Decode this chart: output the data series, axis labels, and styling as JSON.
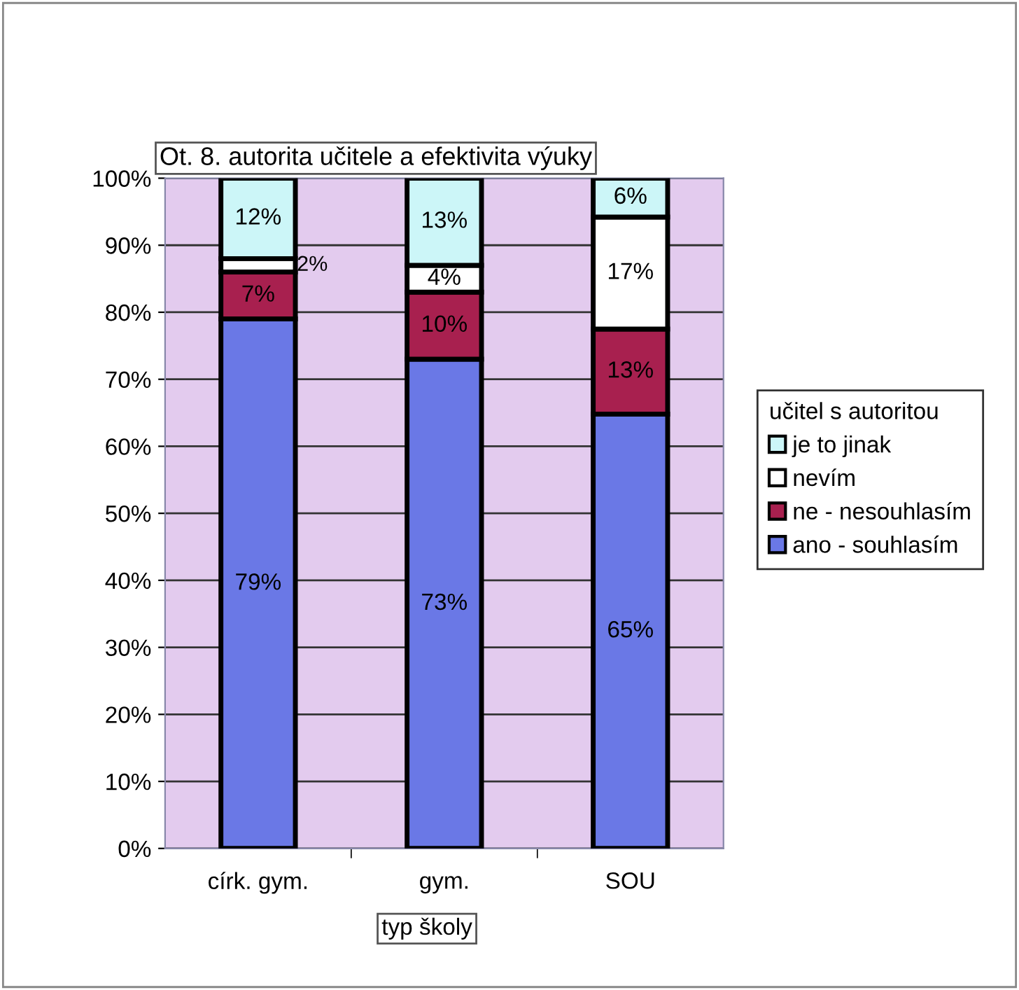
{
  "chart_data": {
    "type": "bar",
    "stacked": true,
    "title": "Ot. 8. autorita učitele a efektivita výuky",
    "xlabel": "typ školy",
    "legend_title": "učitel s autoritou",
    "legend": "right",
    "categories": [
      "círk. gym.",
      "gym.",
      "SOU"
    ],
    "series": [
      {
        "name": "ano - souhlasím",
        "color": "#6a78e6",
        "values": [
          79,
          73,
          64.8
        ],
        "value_labels": [
          "79%",
          "73%",
          "65%"
        ]
      },
      {
        "name": "ne - nesouhlasím",
        "color": "#a8204f",
        "values": [
          7,
          10,
          12.7
        ],
        "value_labels": [
          "7%",
          "10%",
          "13%"
        ]
      },
      {
        "name": "nevím",
        "color": "#ffffff",
        "values": [
          2,
          4,
          16.7
        ],
        "value_labels": [
          "2%",
          "4%",
          "17%"
        ]
      },
      {
        "name": "je to jinak",
        "color": "#ccf6f8",
        "values": [
          12,
          13,
          5.8
        ],
        "value_labels": [
          "12%",
          "13%",
          "6%"
        ]
      }
    ],
    "ylim": [
      0,
      100
    ],
    "yticks": [
      {
        "value": 0,
        "label": "0%"
      },
      {
        "value": 10,
        "label": "10%"
      },
      {
        "value": 20,
        "label": "20%"
      },
      {
        "value": 30,
        "label": "30%"
      },
      {
        "value": 40,
        "label": "40%"
      },
      {
        "value": 50,
        "label": "50%"
      },
      {
        "value": 60,
        "label": "60%"
      },
      {
        "value": 70,
        "label": "70%"
      },
      {
        "value": 80,
        "label": "80%"
      },
      {
        "value": 90,
        "label": "90%"
      },
      {
        "value": 100,
        "label": "100%"
      }
    ],
    "grid": "y"
  }
}
